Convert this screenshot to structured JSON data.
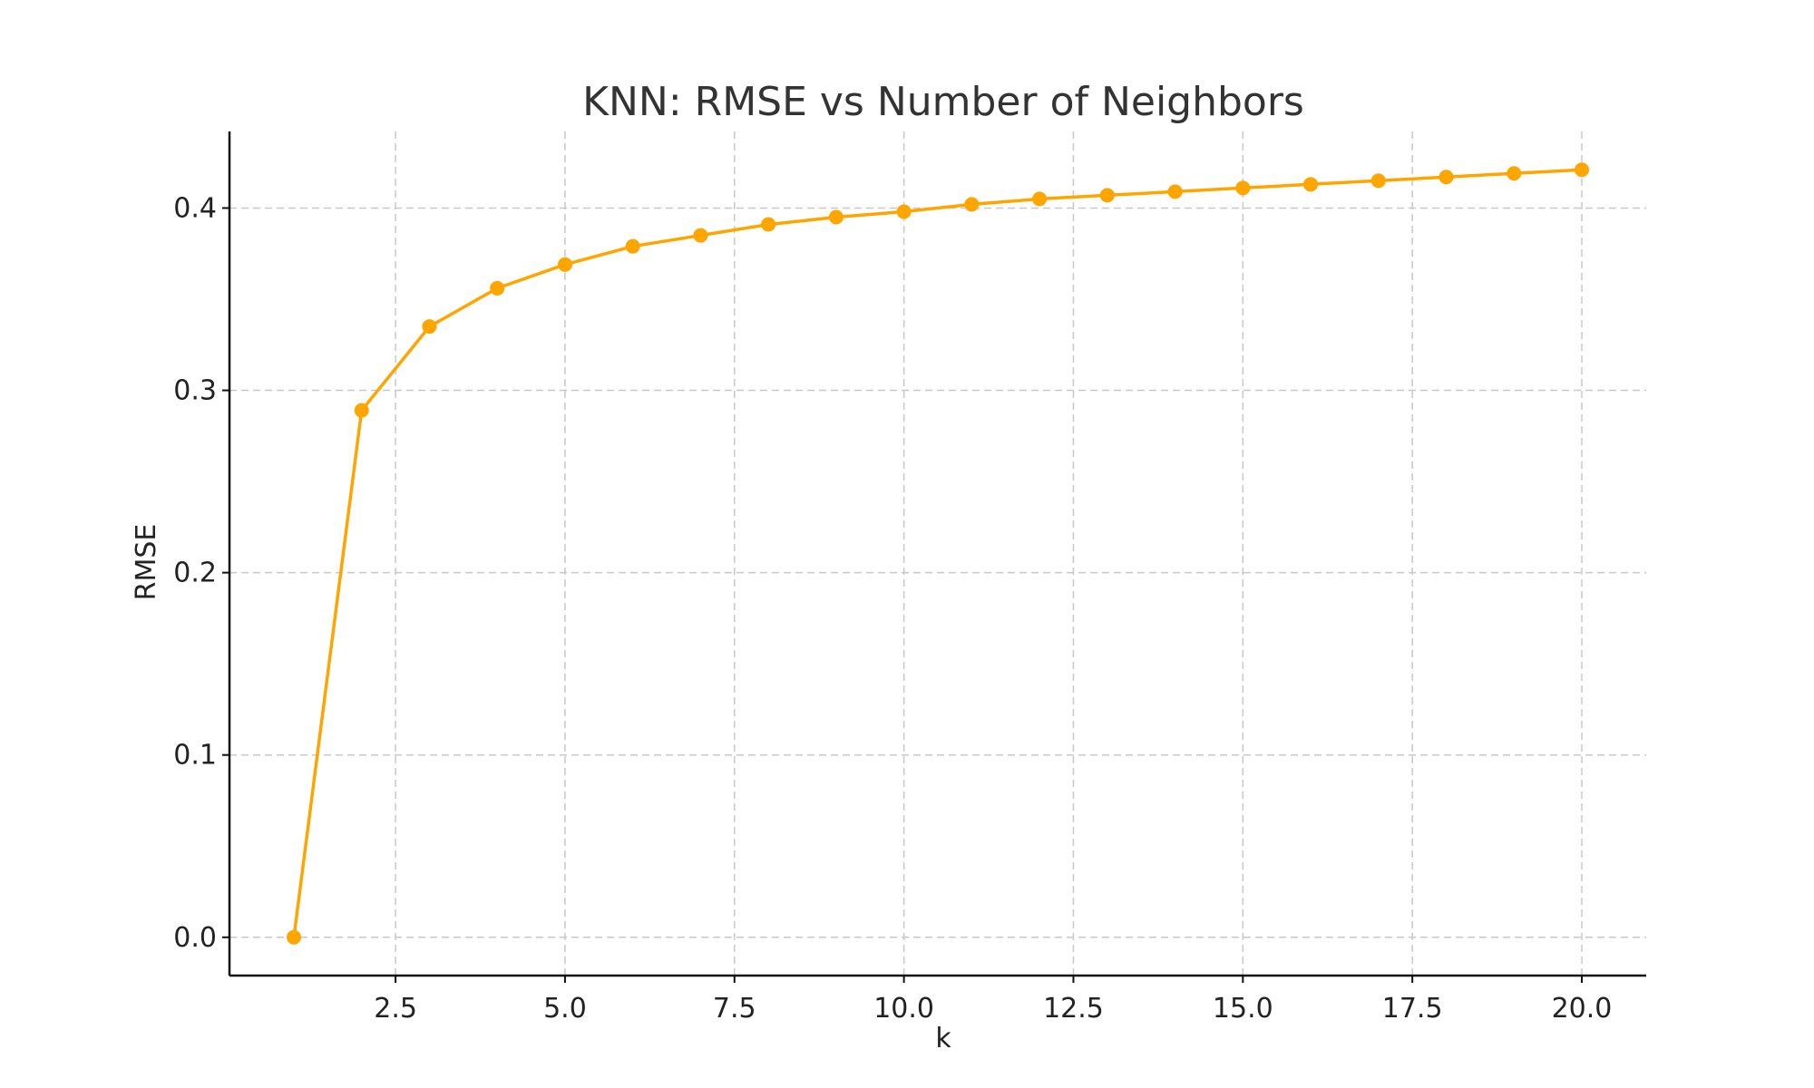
{
  "chart_data": {
    "type": "line",
    "title": "KNN: RMSE vs Number of Neighbors",
    "xlabel": "k",
    "ylabel": "RMSE",
    "xlim": [
      0.05,
      20.95
    ],
    "ylim": [
      -0.021,
      0.442
    ],
    "xticks": [
      2.5,
      5.0,
      7.5,
      10.0,
      12.5,
      15.0,
      17.5,
      20.0
    ],
    "xtick_labels": [
      "2.5",
      "5.0",
      "7.5",
      "10.0",
      "12.5",
      "15.0",
      "17.5",
      "20.0"
    ],
    "yticks": [
      0.0,
      0.1,
      0.2,
      0.3,
      0.4
    ],
    "ytick_labels": [
      "0.0",
      "0.1",
      "0.2",
      "0.3",
      "0.4"
    ],
    "grid": true,
    "color": "#FFA500",
    "series": [
      {
        "x": [
          1,
          2,
          3,
          4,
          5,
          6,
          7,
          8,
          9,
          10,
          11,
          12,
          13,
          14,
          15,
          16,
          17,
          18,
          19,
          20
        ],
        "y": [
          0.0,
          0.289,
          0.335,
          0.356,
          0.369,
          0.379,
          0.385,
          0.391,
          0.395,
          0.398,
          0.402,
          0.405,
          0.407,
          0.409,
          0.411,
          0.413,
          0.415,
          0.417,
          0.419,
          0.421
        ]
      }
    ]
  }
}
